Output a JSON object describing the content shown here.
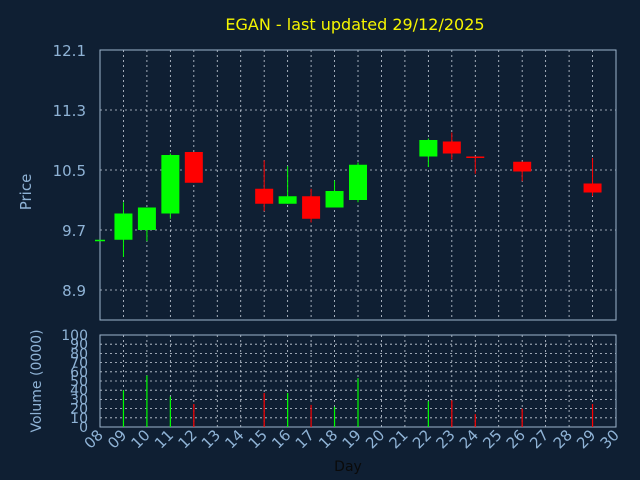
{
  "colors": {
    "background": "#0f1f33",
    "title": "#f5f500",
    "axis_text": "#8fb3d6",
    "frame": "#9db4cc",
    "grid": "#c8d0dc",
    "up": "#00ff00",
    "down": "#ff0000"
  },
  "chart_data": [
    {
      "type": "candlestick",
      "title": "EGAN - last updated 29/12/2025",
      "ylabel": "Price",
      "xlabel": "Day",
      "ylim": [
        8.5,
        12.1
      ],
      "y_ticks": [
        "12.1",
        "11.3",
        "10.5",
        "9.7",
        "8.9"
      ],
      "x_ticks": [
        "08",
        "09",
        "10",
        "11",
        "12",
        "13",
        "14",
        "15",
        "16",
        "17",
        "18",
        "19",
        "20",
        "21",
        "22",
        "23",
        "24",
        "25",
        "26",
        "27",
        "28",
        "29",
        "30"
      ],
      "grid": true,
      "candles": [
        {
          "day": "08",
          "open": 9.57,
          "high": 9.57,
          "low": 9.57,
          "close": 9.57
        },
        {
          "day": "09",
          "open": 9.57,
          "high": 10.07,
          "low": 9.34,
          "close": 9.92
        },
        {
          "day": "10",
          "open": 9.7,
          "high": 10.0,
          "low": 9.55,
          "close": 10.0
        },
        {
          "day": "11",
          "open": 9.92,
          "high": 10.72,
          "low": 9.85,
          "close": 10.7
        },
        {
          "day": "12",
          "open": 10.74,
          "high": 10.74,
          "low": 10.33,
          "close": 10.33
        },
        {
          "day": "15",
          "open": 10.25,
          "high": 10.63,
          "low": 9.95,
          "close": 10.05
        },
        {
          "day": "16",
          "open": 10.05,
          "high": 10.55,
          "low": 10.05,
          "close": 10.15
        },
        {
          "day": "17",
          "open": 10.15,
          "high": 10.25,
          "low": 9.8,
          "close": 9.85
        },
        {
          "day": "18",
          "open": 10.0,
          "high": 10.36,
          "low": 10.0,
          "close": 10.22
        },
        {
          "day": "19",
          "open": 10.1,
          "high": 10.6,
          "low": 10.07,
          "close": 10.57
        },
        {
          "day": "22",
          "open": 10.68,
          "high": 10.92,
          "low": 10.54,
          "close": 10.9
        },
        {
          "day": "23",
          "open": 10.88,
          "high": 11.0,
          "low": 10.64,
          "close": 10.72
        },
        {
          "day": "24",
          "open": 10.68,
          "high": 10.68,
          "low": 10.45,
          "close": 10.67
        },
        {
          "day": "26",
          "open": 10.61,
          "high": 10.61,
          "low": 10.35,
          "close": 10.48
        },
        {
          "day": "29",
          "open": 10.32,
          "high": 10.66,
          "low": 10.15,
          "close": 10.2
        }
      ]
    },
    {
      "type": "bar",
      "ylabel": "Volume (0000)",
      "ylim": [
        0,
        100
      ],
      "y_ticks": [
        "100",
        "90",
        "80",
        "70",
        "60",
        "50",
        "40",
        "30",
        "20",
        "10",
        "0"
      ],
      "categories": [
        "08",
        "09",
        "10",
        "11",
        "12",
        "15",
        "16",
        "17",
        "18",
        "19",
        "22",
        "23",
        "24",
        "26",
        "29"
      ],
      "values": [
        0,
        40,
        56,
        33,
        25,
        37,
        37,
        24,
        22,
        53,
        28,
        29,
        14,
        20,
        25
      ],
      "direction": [
        "up",
        "up",
        "up",
        "up",
        "down",
        "down",
        "up",
        "down",
        "up",
        "up",
        "up",
        "down",
        "down",
        "down",
        "down"
      ]
    }
  ]
}
